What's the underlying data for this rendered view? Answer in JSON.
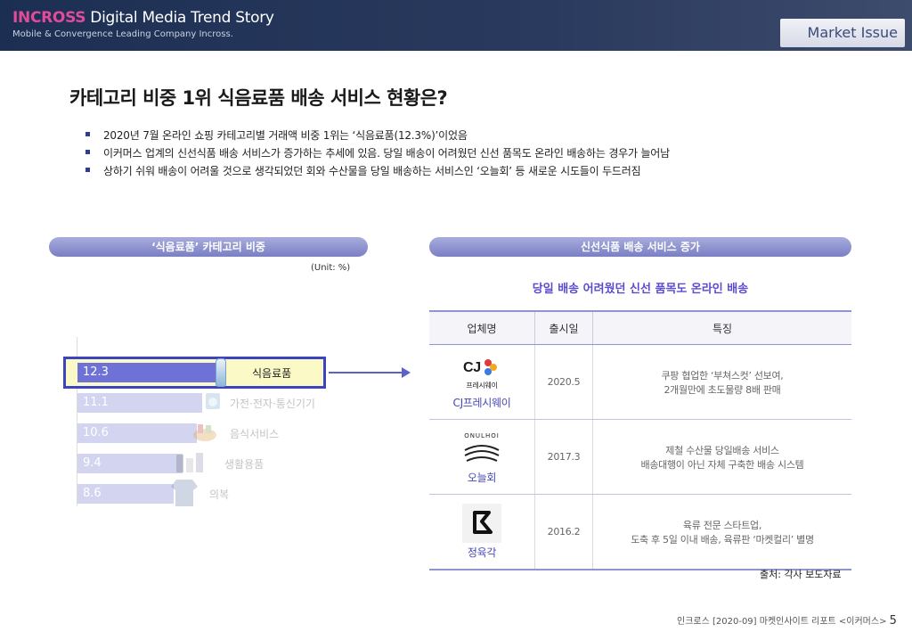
{
  "header": {
    "brand_accent": "INCROSS",
    "brand_rest": " Digital Media Trend Story",
    "tagline": "Mobile & Convergence Leading Company Incross.",
    "section": "Market Issue"
  },
  "title": "카테고리 비중 1위 식음료품 배송 서비스 현황은?",
  "bullets": [
    "2020년 7월 온라인 쇼핑 카테고리별 거래액 비중 1위는 ‘식음료품(12.3%)’이었음",
    "이커머스 업계의 신선식품 배송 서비스가 증가하는 추세에 있음. 당일 배송이 어려웠던 신선 품목도 온라인 배송하는 경우가 늘어남",
    "상하기 쉬워 배송이 어려울 것으로 생각되었던 회와 수산물을 당일 배송하는 서비스인 ‘오늘회’ 등 새로운 시도들이 두드러짐"
  ],
  "left_panel": {
    "heading": "‘식음료품’ 카테고리 비중",
    "unit": "(Unit: %)"
  },
  "chart_data": {
    "type": "bar",
    "orientation": "horizontal",
    "categories": [
      "식음료품",
      "가전·전자·통신기기",
      "음식서비스",
      "생활용품",
      "의복"
    ],
    "values": [
      12.3,
      11.1,
      10.6,
      9.4,
      8.6
    ],
    "highlight": "식음료품",
    "colors": {
      "highlight": "#6e71d6",
      "other": "#d3d5f0"
    }
  },
  "right_panel": {
    "heading": "신선식품 배송 서비스 증가",
    "subheading": "당일 배송 어려웠던 신선 품목도 온라인 배송",
    "columns": [
      "업체명",
      "출시일",
      "특징"
    ],
    "rows": [
      {
        "company": "CJ프레시웨이",
        "logo_text": "프레시웨이",
        "logo_mark": "CJ",
        "date": "2020.5",
        "feature": [
          "쿠팡 협업한 ‘부쳐스컷’ 선보여,",
          "2개월만에 초도물량 8배 판매"
        ]
      },
      {
        "company": "오늘회",
        "logo_text": "ONULHOI",
        "date": "2017.3",
        "feature": [
          "제철 수산물 당일배송 서비스",
          "배송대행이 아닌 자체 구축한 배송 시스템"
        ]
      },
      {
        "company": "정육각",
        "date": "2016.2",
        "feature": [
          "육류 전문 스타트업,",
          "도축 후 5일 이내 배송, 육류판 ‘마켓컬리’ 별명"
        ]
      }
    ],
    "source": "출처: 각사 보도자료"
  },
  "footer": {
    "text": "인크로스 [2020-09] 마켓인사이트 리포트 <이커머스>",
    "page": "5"
  }
}
